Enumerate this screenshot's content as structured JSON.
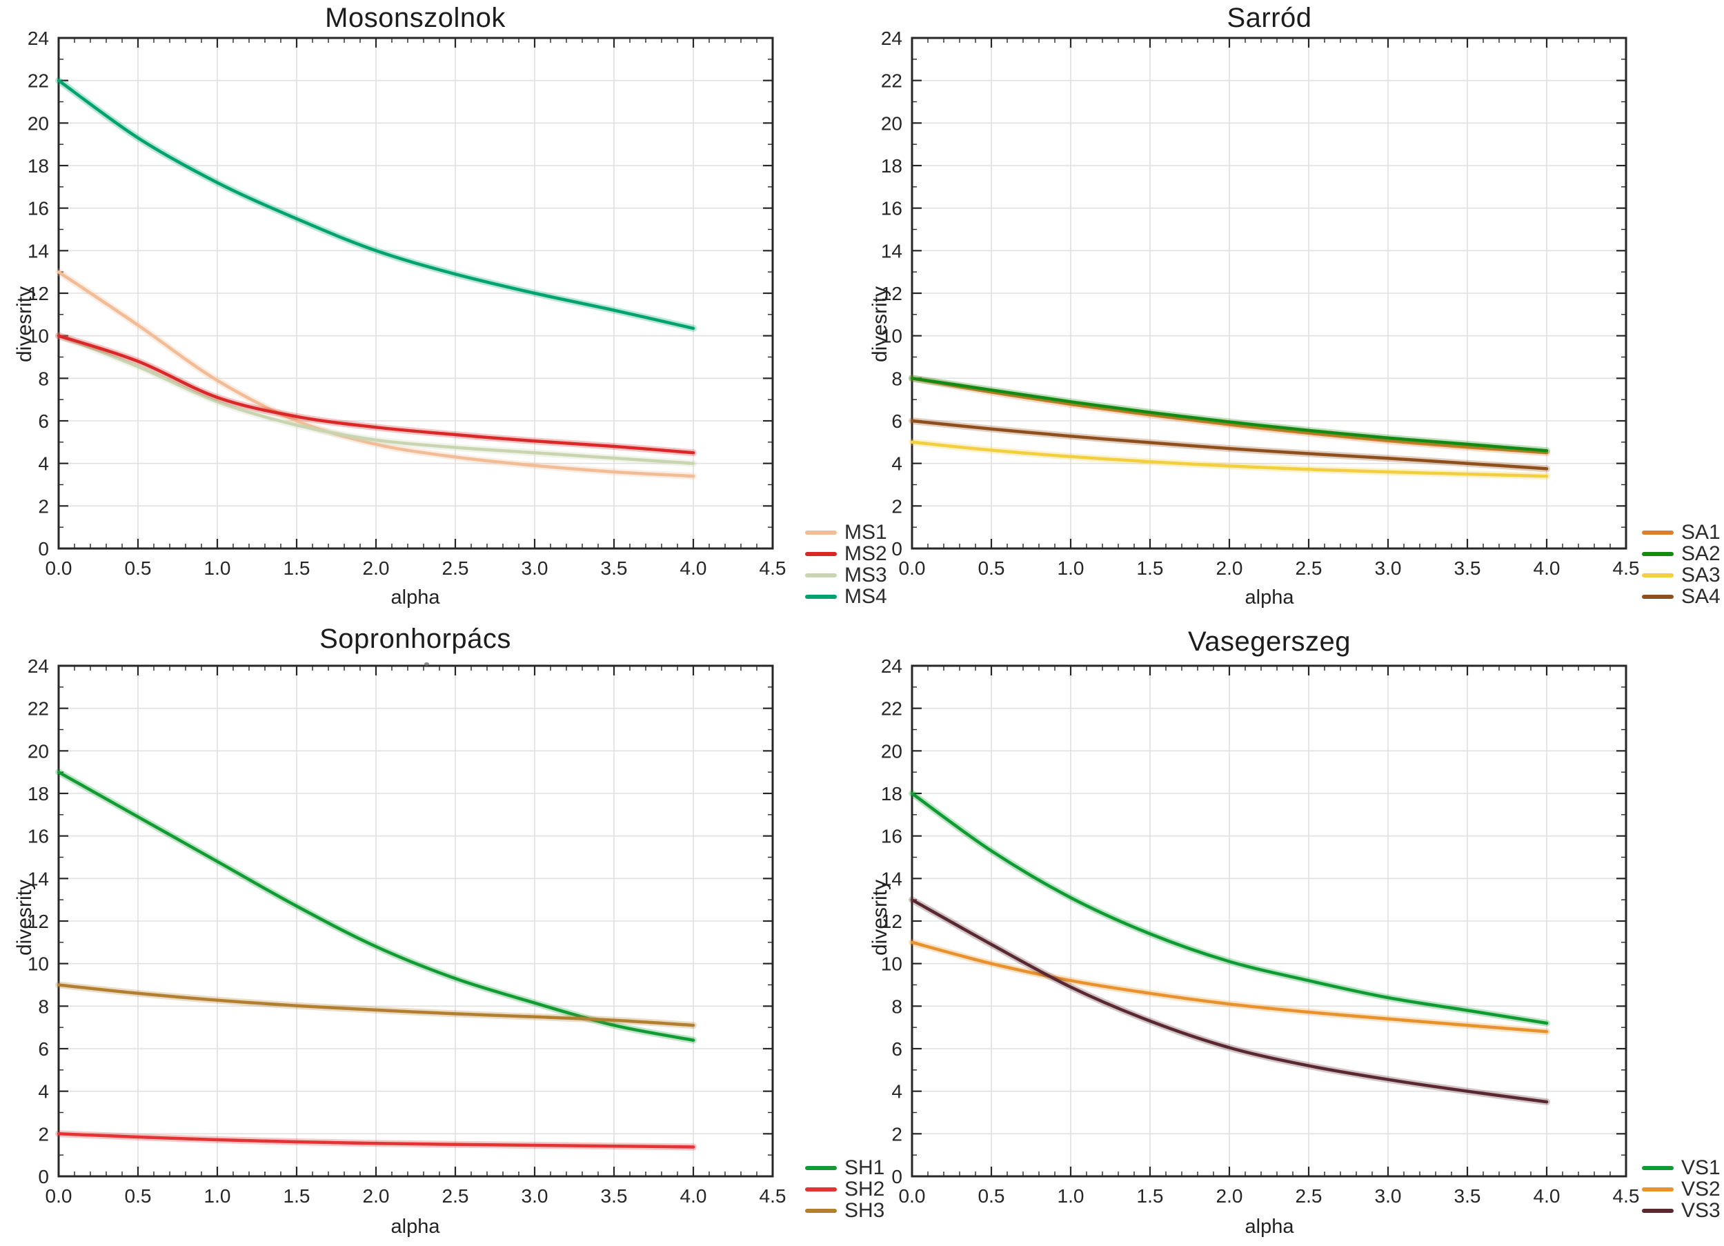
{
  "figure": {
    "background": "#ffffff"
  },
  "axes": {
    "x": {
      "label": "alpha",
      "min": 0,
      "max": 4.5,
      "major_step": 0.5,
      "minor_step": 0.1,
      "tick_labels": [
        "0.0",
        "0.5",
        "1.0",
        "1.5",
        "2.0",
        "2.5",
        "3.0",
        "3.5",
        "4.0",
        "4.5"
      ]
    },
    "y": {
      "label": "divesrity",
      "min": 0,
      "max": 24,
      "major_step": 2,
      "minor_step": 1,
      "tick_labels": [
        "0",
        "2",
        "4",
        "6",
        "8",
        "10",
        "12",
        "14",
        "16",
        "18",
        "20",
        "22",
        "24"
      ]
    }
  },
  "style": {
    "grid_color": "#e0e0e0",
    "frame_color": "#262626",
    "tick_color": "#262626",
    "text_color": "#262626",
    "halo_opacity": 0.27
  },
  "chart_data": [
    {
      "type": "line",
      "title": "Mosonszolnok",
      "xlabel": "alpha",
      "ylabel": "divesrity",
      "xlim": [
        0,
        4.5
      ],
      "ylim": [
        0,
        24
      ],
      "grid": true,
      "legend_position": "outside-right-bottom",
      "x": [
        0,
        0.5,
        1.0,
        1.5,
        2.0,
        2.5,
        3.0,
        3.5,
        4.0
      ],
      "draw_order": [
        0,
        2,
        1,
        3
      ],
      "series": [
        {
          "name": "MS1",
          "color": "#f2bd96",
          "values": [
            13.0,
            10.5,
            7.9,
            6.0,
            4.9,
            4.3,
            3.9,
            3.6,
            3.4
          ]
        },
        {
          "name": "MS2",
          "color": "#da2727",
          "values": [
            10.0,
            8.8,
            7.1,
            6.2,
            5.7,
            5.35,
            5.05,
            4.8,
            4.5
          ]
        },
        {
          "name": "MS3",
          "color": "#c9d5b0",
          "values": [
            10.0,
            8.55,
            6.9,
            5.8,
            5.1,
            4.75,
            4.5,
            4.25,
            4.0
          ]
        },
        {
          "name": "MS4",
          "color": "#00a36e",
          "values": [
            22.0,
            19.3,
            17.2,
            15.5,
            14.0,
            12.9,
            12.0,
            11.2,
            10.35
          ]
        }
      ]
    },
    {
      "type": "line",
      "title": "Sarród",
      "xlabel": "alpha",
      "ylabel": "divesrity",
      "xlim": [
        0,
        4.5
      ],
      "ylim": [
        0,
        24
      ],
      "grid": true,
      "legend_position": "outside-right-bottom",
      "x": [
        0,
        0.5,
        1.0,
        1.5,
        2.0,
        2.5,
        3.0,
        3.5,
        4.0
      ],
      "draw_order": [
        2,
        3,
        0,
        1
      ],
      "series": [
        {
          "name": "SA1",
          "color": "#dd7e2b",
          "values": [
            8.0,
            7.35,
            6.78,
            6.28,
            5.82,
            5.42,
            5.06,
            4.76,
            4.5
          ]
        },
        {
          "name": "SA2",
          "color": "#148a14",
          "values": [
            8.0,
            7.45,
            6.9,
            6.4,
            5.95,
            5.55,
            5.2,
            4.9,
            4.6
          ]
        },
        {
          "name": "SA3",
          "color": "#f2cf40",
          "values": [
            5.0,
            4.62,
            4.32,
            4.08,
            3.88,
            3.72,
            3.6,
            3.5,
            3.4
          ]
        },
        {
          "name": "SA4",
          "color": "#8f4f1d",
          "values": [
            6.0,
            5.62,
            5.28,
            4.98,
            4.7,
            4.46,
            4.24,
            4.0,
            3.75
          ]
        }
      ]
    },
    {
      "type": "line",
      "title": "Sopronhorpács",
      "xlabel": "alpha",
      "ylabel": "divesrity",
      "xlim": [
        0,
        4.5
      ],
      "ylim": [
        0,
        24
      ],
      "grid": true,
      "legend_position": "outside-right-bottom",
      "x": [
        0,
        0.5,
        1.0,
        1.5,
        2.0,
        2.5,
        3.0,
        3.5,
        4.0
      ],
      "draw_order": [
        1,
        0,
        2
      ],
      "series": [
        {
          "name": "SH1",
          "color": "#129b32",
          "values": [
            19.0,
            16.9,
            14.8,
            12.7,
            10.8,
            9.3,
            8.15,
            7.1,
            6.4
          ]
        },
        {
          "name": "SH2",
          "color": "#e23434",
          "values": [
            2.0,
            1.85,
            1.72,
            1.62,
            1.55,
            1.5,
            1.46,
            1.42,
            1.38
          ]
        },
        {
          "name": "SH3",
          "color": "#b17f2f",
          "values": [
            9.0,
            8.6,
            8.28,
            8.02,
            7.82,
            7.64,
            7.5,
            7.34,
            7.1
          ]
        }
      ]
    },
    {
      "type": "line",
      "title": "Vasegerszeg",
      "xlabel": "alpha",
      "ylabel": "divesrity",
      "xlim": [
        0,
        4.5
      ],
      "ylim": [
        0,
        24
      ],
      "grid": true,
      "legend_position": "outside-right-bottom",
      "x": [
        0,
        0.5,
        1.0,
        1.5,
        2.0,
        2.5,
        3.0,
        3.5,
        4.0
      ],
      "draw_order": [
        0,
        1,
        2
      ],
      "series": [
        {
          "name": "VS1",
          "color": "#0f9b32",
          "values": [
            18.0,
            15.3,
            13.1,
            11.4,
            10.1,
            9.2,
            8.4,
            7.8,
            7.2
          ]
        },
        {
          "name": "VS2",
          "color": "#e8922e",
          "values": [
            11.0,
            10.0,
            9.2,
            8.6,
            8.1,
            7.72,
            7.4,
            7.1,
            6.8
          ]
        },
        {
          "name": "VS3",
          "color": "#5a2830",
          "values": [
            13.0,
            10.9,
            8.9,
            7.3,
            6.05,
            5.2,
            4.55,
            4.0,
            3.5
          ]
        }
      ]
    }
  ]
}
